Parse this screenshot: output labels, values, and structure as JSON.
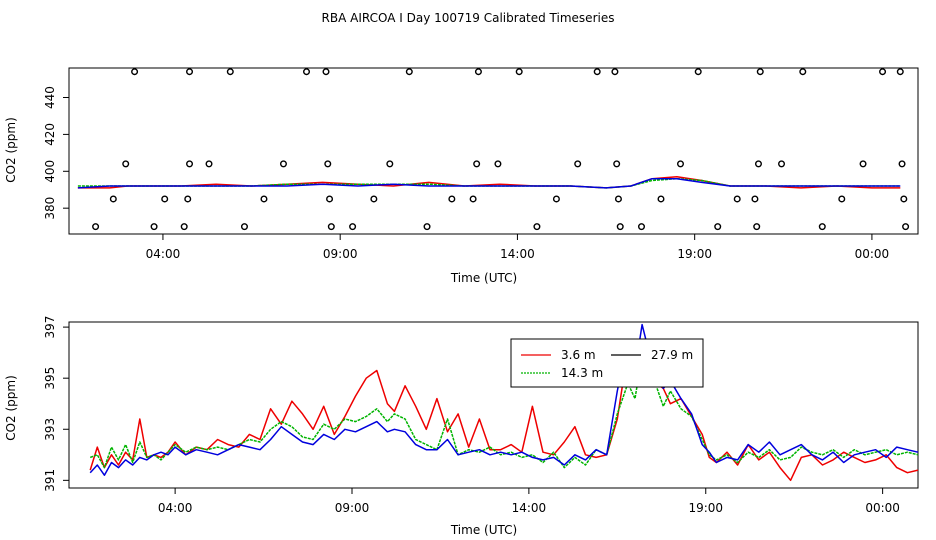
{
  "title": "RBA AIRCOA I  Day 100719  Calibrated Timeseries",
  "colors": {
    "red": "#ee0000",
    "green": "#00b400",
    "blue": "#0000dd",
    "axis": "#000000"
  },
  "chart_data": [
    {
      "type": "scatter+line",
      "title": "",
      "xlabel": "Time (UTC)",
      "ylabel": "CO2 (ppm)",
      "xlim": [
        1.35,
        25.3
      ],
      "ylim": [
        366,
        456
      ],
      "x_ticks": [
        4,
        9,
        14,
        19,
        24
      ],
      "x_tick_labels": [
        "04:00",
        "09:00",
        "14:00",
        "19:00",
        "00:00"
      ],
      "y_ticks": [
        380,
        400,
        420,
        440
      ],
      "y_tick_labels": [
        "380",
        "400",
        "420",
        "440"
      ],
      "calibration_points": [
        {
          "x": 2.1,
          "y": 370
        },
        {
          "x": 2.6,
          "y": 385
        },
        {
          "x": 2.95,
          "y": 404
        },
        {
          "x": 3.2,
          "y": 454
        },
        {
          "x": 3.75,
          "y": 370
        },
        {
          "x": 4.05,
          "y": 385
        },
        {
          "x": 4.6,
          "y": 370
        },
        {
          "x": 4.7,
          "y": 385
        },
        {
          "x": 4.75,
          "y": 404
        },
        {
          "x": 4.75,
          "y": 454
        },
        {
          "x": 5.3,
          "y": 404
        },
        {
          "x": 5.9,
          "y": 454
        },
        {
          "x": 6.3,
          "y": 370
        },
        {
          "x": 6.85,
          "y": 385
        },
        {
          "x": 7.4,
          "y": 404
        },
        {
          "x": 8.05,
          "y": 454
        },
        {
          "x": 8.6,
          "y": 454
        },
        {
          "x": 8.65,
          "y": 404
        },
        {
          "x": 8.7,
          "y": 385
        },
        {
          "x": 8.75,
          "y": 370
        },
        {
          "x": 9.35,
          "y": 370
        },
        {
          "x": 9.95,
          "y": 385
        },
        {
          "x": 10.4,
          "y": 404
        },
        {
          "x": 10.95,
          "y": 454
        },
        {
          "x": 11.45,
          "y": 370
        },
        {
          "x": 12.15,
          "y": 385
        },
        {
          "x": 12.75,
          "y": 385
        },
        {
          "x": 12.85,
          "y": 404
        },
        {
          "x": 12.9,
          "y": 454
        },
        {
          "x": 13.45,
          "y": 404
        },
        {
          "x": 14.05,
          "y": 454
        },
        {
          "x": 14.55,
          "y": 370
        },
        {
          "x": 15.1,
          "y": 385
        },
        {
          "x": 15.7,
          "y": 404
        },
        {
          "x": 16.25,
          "y": 454
        },
        {
          "x": 16.75,
          "y": 454
        },
        {
          "x": 16.8,
          "y": 404
        },
        {
          "x": 16.85,
          "y": 385
        },
        {
          "x": 16.9,
          "y": 370
        },
        {
          "x": 17.5,
          "y": 370
        },
        {
          "x": 18.05,
          "y": 385
        },
        {
          "x": 18.6,
          "y": 404
        },
        {
          "x": 19.1,
          "y": 454
        },
        {
          "x": 19.65,
          "y": 370
        },
        {
          "x": 20.2,
          "y": 385
        },
        {
          "x": 20.7,
          "y": 385
        },
        {
          "x": 20.75,
          "y": 370
        },
        {
          "x": 20.8,
          "y": 404
        },
        {
          "x": 20.85,
          "y": 454
        },
        {
          "x": 21.45,
          "y": 404
        },
        {
          "x": 22.05,
          "y": 454
        },
        {
          "x": 22.6,
          "y": 370
        },
        {
          "x": 23.15,
          "y": 385
        },
        {
          "x": 23.75,
          "y": 404
        },
        {
          "x": 24.3,
          "y": 454
        },
        {
          "x": 24.8,
          "y": 454
        },
        {
          "x": 24.85,
          "y": 404
        },
        {
          "x": 24.9,
          "y": 385
        },
        {
          "x": 24.95,
          "y": 370
        }
      ],
      "series": [
        {
          "name": "3.6 m",
          "color": "#ee0000",
          "x": [
            1.6,
            2.5,
            3.0,
            3.5,
            4.5,
            5.5,
            6.5,
            7.5,
            8.5,
            9.5,
            10.5,
            11.5,
            12.5,
            13.5,
            14.5,
            15.5,
            16.5,
            17.2,
            17.8,
            18.5,
            19.2,
            20.0,
            21.0,
            22.0,
            23.0,
            24.0,
            24.8
          ],
          "values": [
            391,
            391,
            392,
            392,
            392,
            393,
            392,
            393,
            394,
            393,
            392,
            394,
            392,
            393,
            392,
            392,
            391,
            392,
            396,
            397,
            395,
            392,
            392,
            391,
            392,
            391,
            391
          ]
        },
        {
          "name": "14.3 m",
          "color": "#00b400",
          "x": [
            1.6,
            2.5,
            3.5,
            4.5,
            5.5,
            6.5,
            7.5,
            8.5,
            9.5,
            10.5,
            11.5,
            12.5,
            13.5,
            14.5,
            15.5,
            16.5,
            17.2,
            17.8,
            18.5,
            19.2,
            20.0,
            21.0,
            22.0,
            23.0,
            24.0,
            24.8
          ],
          "values": [
            392,
            392,
            392,
            392,
            392,
            392,
            393,
            393,
            393,
            393,
            393,
            392,
            392,
            392,
            392,
            391,
            392,
            395,
            396,
            395,
            392,
            392,
            392,
            392,
            392,
            392
          ]
        },
        {
          "name": "27.9 m",
          "color": "#0000dd",
          "x": [
            1.6,
            2.5,
            3.5,
            4.5,
            5.5,
            6.5,
            7.5,
            8.5,
            9.5,
            10.5,
            11.5,
            12.5,
            13.5,
            14.5,
            15.5,
            16.5,
            17.2,
            17.8,
            18.5,
            19.2,
            20.0,
            21.0,
            22.0,
            23.0,
            24.0,
            24.8
          ],
          "values": [
            391,
            392,
            392,
            392,
            392,
            392,
            392,
            393,
            392,
            393,
            392,
            392,
            392,
            392,
            392,
            391,
            392,
            396,
            396,
            394,
            392,
            392,
            392,
            392,
            392,
            392
          ]
        }
      ]
    },
    {
      "type": "line",
      "title": "",
      "xlabel": "Time (UTC)",
      "ylabel": "CO2 (ppm)",
      "xlim": [
        1.0,
        25.0
      ],
      "ylim": [
        390.7,
        397.2
      ],
      "x_ticks": [
        4,
        9,
        14,
        19,
        24
      ],
      "x_tick_labels": [
        "04:00",
        "09:00",
        "14:00",
        "19:00",
        "00:00"
      ],
      "y_ticks": [
        391,
        393,
        395,
        397
      ],
      "y_tick_labels": [
        "391",
        "393",
        "395",
        "397"
      ],
      "legend": {
        "position": "top-right-inside",
        "entries": [
          "3.6 m",
          "27.9 m",
          "14.3 m"
        ]
      },
      "series": [
        {
          "name": "3.6 m",
          "color": "#ee0000",
          "x": [
            1.6,
            1.8,
            2.0,
            2.2,
            2.4,
            2.6,
            2.8,
            3.0,
            3.2,
            3.4,
            3.6,
            3.8,
            4.0,
            4.3,
            4.6,
            4.9,
            5.2,
            5.5,
            5.8,
            6.1,
            6.4,
            6.7,
            7.0,
            7.3,
            7.6,
            7.9,
            8.2,
            8.5,
            8.8,
            9.1,
            9.4,
            9.7,
            10.0,
            10.2,
            10.5,
            10.8,
            11.1,
            11.4,
            11.7,
            12.0,
            12.3,
            12.6,
            12.9,
            13.2,
            13.5,
            13.8,
            14.1,
            14.4,
            14.7,
            15.0,
            15.3,
            15.6,
            15.9,
            16.2,
            16.5,
            16.8,
            17.0,
            17.2,
            17.4,
            17.6,
            17.8,
            18.0,
            18.3,
            18.6,
            18.9,
            19.1,
            19.3,
            19.6,
            19.9,
            20.2,
            20.5,
            20.8,
            21.1,
            21.4,
            21.7,
            22.0,
            22.3,
            22.6,
            22.9,
            23.2,
            23.5,
            23.8,
            24.1,
            24.4,
            24.7,
            25.0
          ],
          "values": [
            391.4,
            392.3,
            391.5,
            392.0,
            391.6,
            392.1,
            391.8,
            393.4,
            391.9,
            392.0,
            391.9,
            392.1,
            392.5,
            392.0,
            392.3,
            392.2,
            392.6,
            392.4,
            392.3,
            392.8,
            392.6,
            393.8,
            393.2,
            394.1,
            393.6,
            393.0,
            393.9,
            392.8,
            393.5,
            394.3,
            395.0,
            395.3,
            394.0,
            393.7,
            394.7,
            393.9,
            393.0,
            394.2,
            392.9,
            393.6,
            392.3,
            393.4,
            392.2,
            392.2,
            392.4,
            392.1,
            393.9,
            392.1,
            392.0,
            392.5,
            393.1,
            392.0,
            391.9,
            392.0,
            393.4,
            396.1,
            395.0,
            396.5,
            395.5,
            394.8,
            394.6,
            394.0,
            394.2,
            393.5,
            392.8,
            391.9,
            391.7,
            392.1,
            391.6,
            392.4,
            391.8,
            392.1,
            391.5,
            391.0,
            391.9,
            392.0,
            391.6,
            391.8,
            392.1,
            391.9,
            391.7,
            391.8,
            392.0,
            391.5,
            391.3,
            391.4
          ]
        },
        {
          "name": "14.3 m",
          "color": "#00b400",
          "x": [
            1.6,
            1.8,
            2.0,
            2.2,
            2.4,
            2.6,
            2.8,
            3.0,
            3.2,
            3.4,
            3.6,
            3.8,
            4.0,
            4.3,
            4.6,
            4.9,
            5.2,
            5.5,
            5.8,
            6.1,
            6.4,
            6.7,
            7.0,
            7.3,
            7.6,
            7.9,
            8.2,
            8.5,
            8.8,
            9.1,
            9.4,
            9.7,
            10.0,
            10.2,
            10.5,
            10.8,
            11.1,
            11.4,
            11.7,
            12.0,
            12.3,
            12.6,
            12.9,
            13.2,
            13.5,
            13.8,
            14.1,
            14.4,
            14.7,
            15.0,
            15.3,
            15.6,
            15.9,
            16.2,
            16.5,
            16.8,
            17.0,
            17.2,
            17.4,
            17.6,
            17.8,
            18.0,
            18.3,
            18.6,
            18.9,
            19.1,
            19.3,
            19.6,
            19.9,
            20.2,
            20.5,
            20.8,
            21.1,
            21.4,
            21.7,
            22.0,
            22.3,
            22.6,
            22.9,
            23.2,
            23.5,
            23.8,
            24.1,
            24.4,
            24.7,
            25.0
          ],
          "values": [
            391.9,
            392.0,
            391.5,
            392.3,
            391.8,
            392.4,
            391.7,
            392.5,
            391.9,
            392.0,
            391.8,
            392.1,
            392.4,
            392.1,
            392.3,
            392.2,
            392.3,
            392.2,
            392.4,
            392.6,
            392.5,
            393.0,
            393.3,
            393.1,
            392.7,
            392.6,
            393.2,
            393.0,
            393.4,
            393.3,
            393.5,
            393.8,
            393.3,
            393.6,
            393.4,
            392.6,
            392.4,
            392.2,
            393.4,
            392.0,
            392.2,
            392.1,
            392.3,
            392.0,
            392.1,
            391.9,
            392.0,
            391.7,
            392.1,
            391.5,
            391.9,
            391.6,
            392.2,
            392.0,
            393.6,
            394.8,
            394.2,
            395.9,
            395.1,
            394.7,
            393.9,
            394.5,
            393.8,
            393.5,
            392.6,
            392.0,
            391.8,
            392.0,
            391.7,
            392.1,
            391.9,
            392.2,
            391.8,
            391.9,
            392.3,
            392.1,
            392.0,
            392.2,
            391.9,
            392.2,
            392.0,
            392.1,
            392.2,
            392.0,
            392.1,
            392.0
          ]
        },
        {
          "name": "27.9 m",
          "color": "#0000dd",
          "x": [
            1.6,
            1.8,
            2.0,
            2.2,
            2.4,
            2.6,
            2.8,
            3.0,
            3.2,
            3.4,
            3.6,
            3.8,
            4.0,
            4.3,
            4.6,
            4.9,
            5.2,
            5.5,
            5.8,
            6.1,
            6.4,
            6.7,
            7.0,
            7.3,
            7.6,
            7.9,
            8.2,
            8.5,
            8.8,
            9.1,
            9.4,
            9.7,
            10.0,
            10.2,
            10.5,
            10.8,
            11.1,
            11.4,
            11.7,
            12.0,
            12.3,
            12.6,
            12.9,
            13.2,
            13.5,
            13.8,
            14.1,
            14.4,
            14.7,
            15.0,
            15.3,
            15.6,
            15.9,
            16.2,
            16.5,
            16.8,
            17.0,
            17.2,
            17.4,
            17.6,
            17.8,
            18.0,
            18.3,
            18.6,
            18.9,
            19.1,
            19.3,
            19.6,
            19.9,
            20.2,
            20.5,
            20.8,
            21.1,
            21.4,
            21.7,
            22.0,
            22.3,
            22.6,
            22.9,
            23.2,
            23.5,
            23.8,
            24.1,
            24.4,
            24.7,
            25.0
          ],
          "values": [
            391.3,
            391.6,
            391.2,
            391.7,
            391.5,
            391.8,
            391.6,
            391.9,
            391.8,
            392.0,
            392.1,
            392.0,
            392.3,
            392.0,
            392.2,
            392.1,
            392.0,
            392.2,
            392.4,
            392.3,
            392.2,
            392.6,
            393.1,
            392.8,
            392.5,
            392.4,
            392.8,
            392.6,
            393.0,
            392.9,
            393.1,
            393.3,
            392.9,
            393.0,
            392.9,
            392.4,
            392.2,
            392.2,
            392.6,
            392.0,
            392.1,
            392.2,
            392.0,
            392.1,
            392.0,
            392.1,
            391.9,
            391.8,
            391.9,
            391.6,
            392.0,
            391.8,
            392.2,
            392.0,
            394.5,
            396.5,
            395.3,
            397.1,
            396.0,
            395.2,
            394.6,
            394.9,
            394.2,
            393.6,
            392.4,
            392.1,
            391.7,
            391.9,
            391.8,
            392.4,
            392.1,
            392.5,
            392.0,
            392.2,
            392.4,
            392.0,
            391.8,
            392.1,
            391.7,
            392.0,
            392.1,
            392.2,
            391.9,
            392.3,
            392.2,
            392.1
          ]
        }
      ]
    }
  ]
}
